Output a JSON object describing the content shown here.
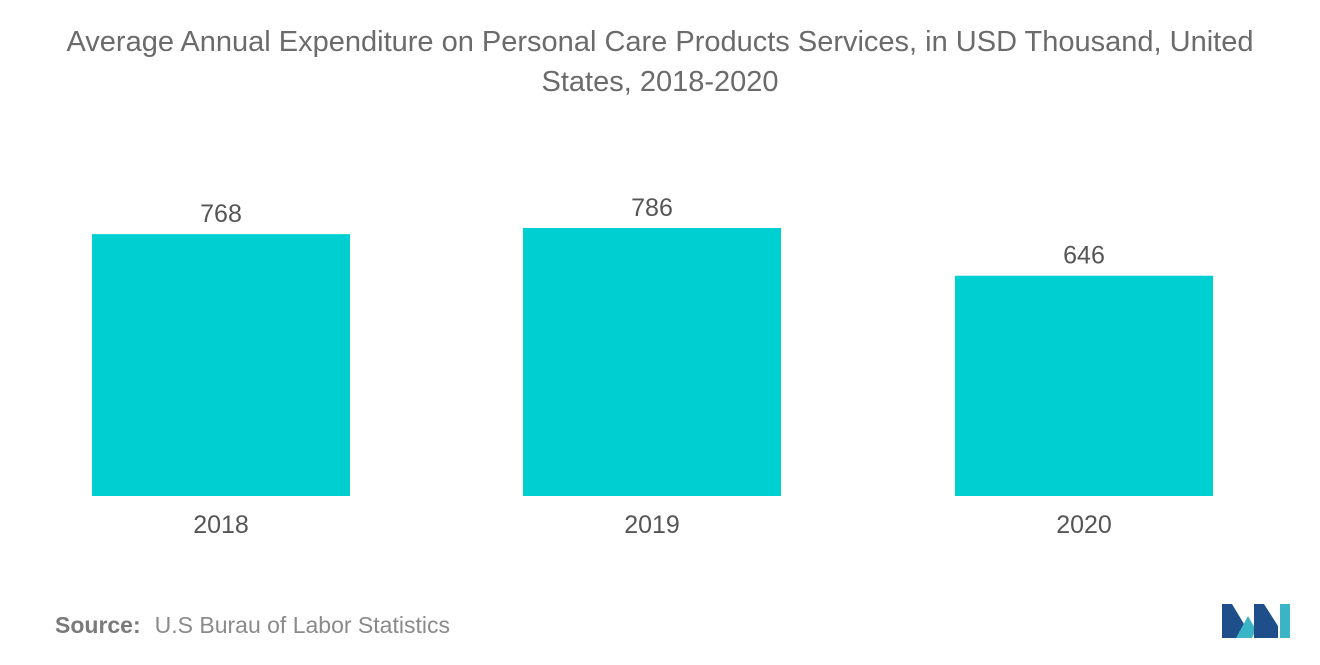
{
  "chart_data": {
    "type": "bar",
    "title_line1": "Average Annual Expenditure on Personal Care Products Services, in USD Thousand, United",
    "title_line2": "States, 2018-2020",
    "categories": [
      "2018",
      "2019",
      "2020"
    ],
    "values": [
      768,
      786,
      646
    ],
    "xlabel": "",
    "ylabel": "",
    "ylim": [
      0,
      786
    ],
    "grid": false,
    "bar_color": "#00cfd1"
  },
  "source": {
    "label": "Source:",
    "text": "U.S Burau of Labor Statistics"
  },
  "logo": {
    "icon": "mordor-intelligence-logo",
    "colors": [
      "#1f4f8a",
      "#3bb5c6"
    ]
  }
}
